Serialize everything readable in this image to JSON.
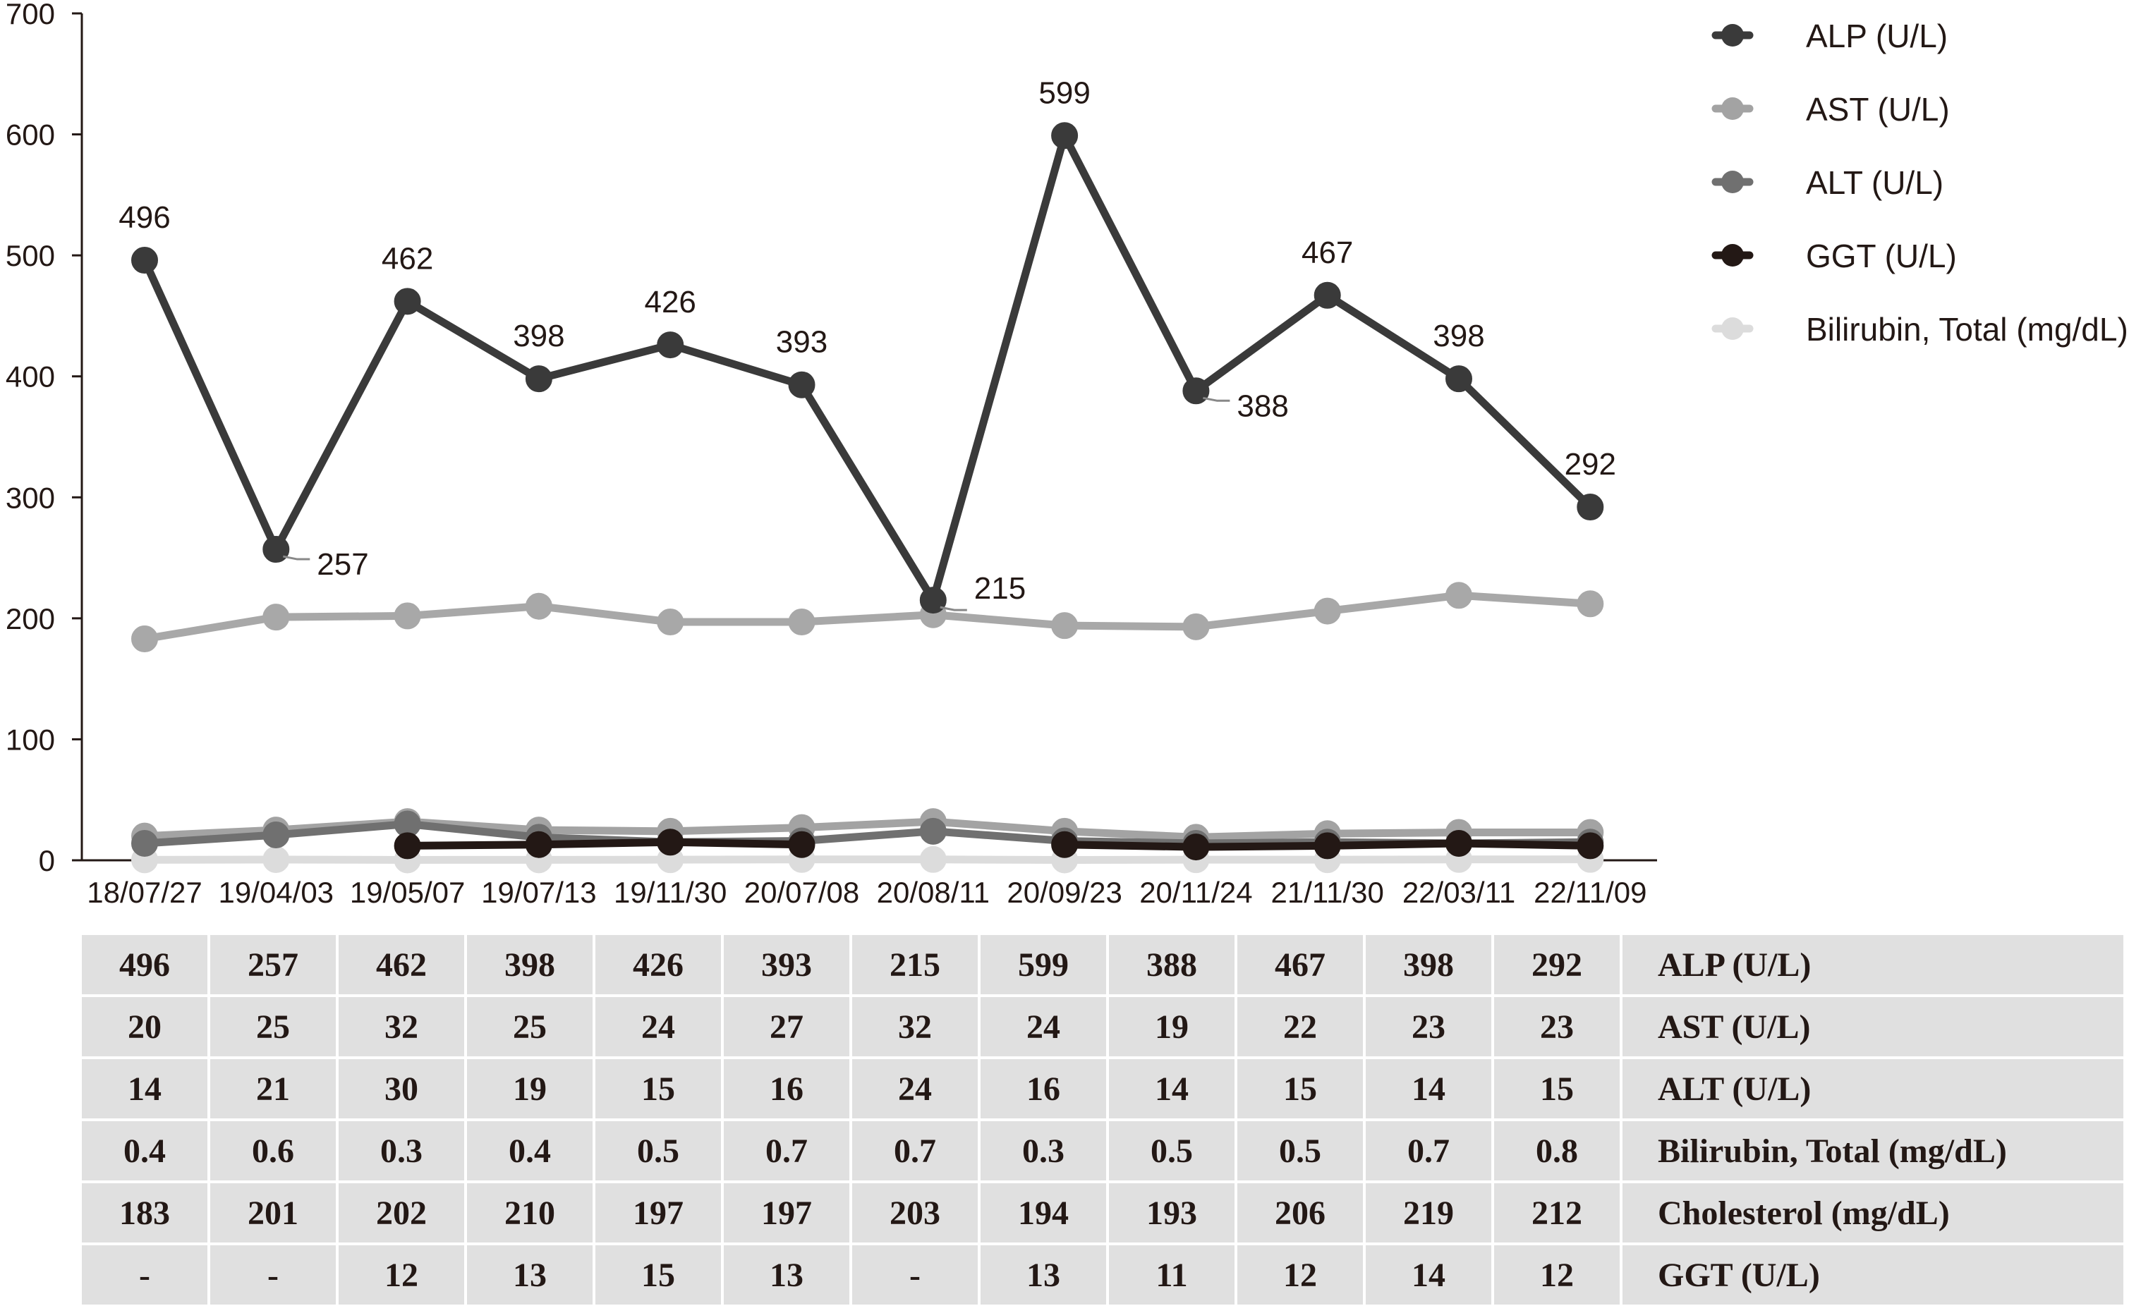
{
  "chart_data": {
    "type": "line",
    "title": "",
    "xlabel": "",
    "ylabel": "",
    "ylim": [
      0,
      700
    ],
    "yticks": [
      "0",
      "100",
      "200",
      "300",
      "400",
      "500",
      "600",
      "700"
    ],
    "categories": [
      "18/07/27",
      "19/04/03",
      "19/05/07",
      "19/07/13",
      "19/11/30",
      "20/07/08",
      "20/08/11",
      "20/09/23",
      "20/11/24",
      "21/11/30",
      "22/03/11",
      "22/11/09"
    ],
    "legend_position": "top-right",
    "series": [
      {
        "name": "ALP (U/L)",
        "color": "#3a3a3a",
        "values": [
          496,
          257,
          462,
          398,
          426,
          393,
          215,
          599,
          388,
          467,
          398,
          292
        ],
        "labels": [
          "496",
          "257",
          "462",
          "398",
          "426",
          "393",
          "215",
          "599",
          "388",
          "467",
          "398",
          "292"
        ],
        "legend": true
      },
      {
        "name": "AST (U/L)",
        "color": "#a3a3a3",
        "values": [
          20,
          25,
          32,
          25,
          24,
          27,
          32,
          24,
          19,
          22,
          23,
          23
        ],
        "legend": true
      },
      {
        "name": "ALT (U/L)",
        "color": "#707070",
        "values": [
          14,
          21,
          30,
          19,
          15,
          16,
          24,
          16,
          14,
          15,
          14,
          15
        ],
        "legend": true
      },
      {
        "name": "GGT (U/L)",
        "color": "#231815",
        "values": [
          null,
          null,
          12,
          13,
          15,
          13,
          null,
          13,
          11,
          12,
          14,
          12
        ],
        "legend": true
      },
      {
        "name": "Bilirubin, Total (mg/dL)",
        "color": "#dcdcdc",
        "values": [
          0.4,
          0.6,
          0.3,
          0.4,
          0.5,
          0.7,
          0.7,
          0.3,
          0.5,
          0.5,
          0.7,
          0.8
        ],
        "legend": true
      },
      {
        "name": "Cholesterol (mg/dL)",
        "color": "#a8a8a8",
        "values": [
          183,
          201,
          202,
          210,
          197,
          197,
          203,
          194,
          193,
          206,
          219,
          212
        ],
        "legend": false
      }
    ],
    "table": {
      "rows": [
        {
          "label": "ALP (U/L)",
          "cells": [
            "496",
            "257",
            "462",
            "398",
            "426",
            "393",
            "215",
            "599",
            "388",
            "467",
            "398",
            "292"
          ]
        },
        {
          "label": "AST (U/L)",
          "cells": [
            "20",
            "25",
            "32",
            "25",
            "24",
            "27",
            "32",
            "24",
            "19",
            "22",
            "23",
            "23"
          ]
        },
        {
          "label": "ALT (U/L)",
          "cells": [
            "14",
            "21",
            "30",
            "19",
            "15",
            "16",
            "24",
            "16",
            "14",
            "15",
            "14",
            "15"
          ]
        },
        {
          "label": "Bilirubin, Total (mg/dL)",
          "cells": [
            "0.4",
            "0.6",
            "0.3",
            "0.4",
            "0.5",
            "0.7",
            "0.7",
            "0.3",
            "0.5",
            "0.5",
            "0.7",
            "0.8"
          ]
        },
        {
          "label": "Cholesterol (mg/dL)",
          "cells": [
            "183",
            "201",
            "202",
            "210",
            "197",
            "197",
            "203",
            "194",
            "193",
            "206",
            "219",
            "212"
          ]
        },
        {
          "label": "GGT (U/L)",
          "cells": [
            "-",
            "-",
            "12",
            "13",
            "15",
            "13",
            "-",
            "13",
            "11",
            "12",
            "14",
            "12"
          ]
        }
      ]
    }
  }
}
